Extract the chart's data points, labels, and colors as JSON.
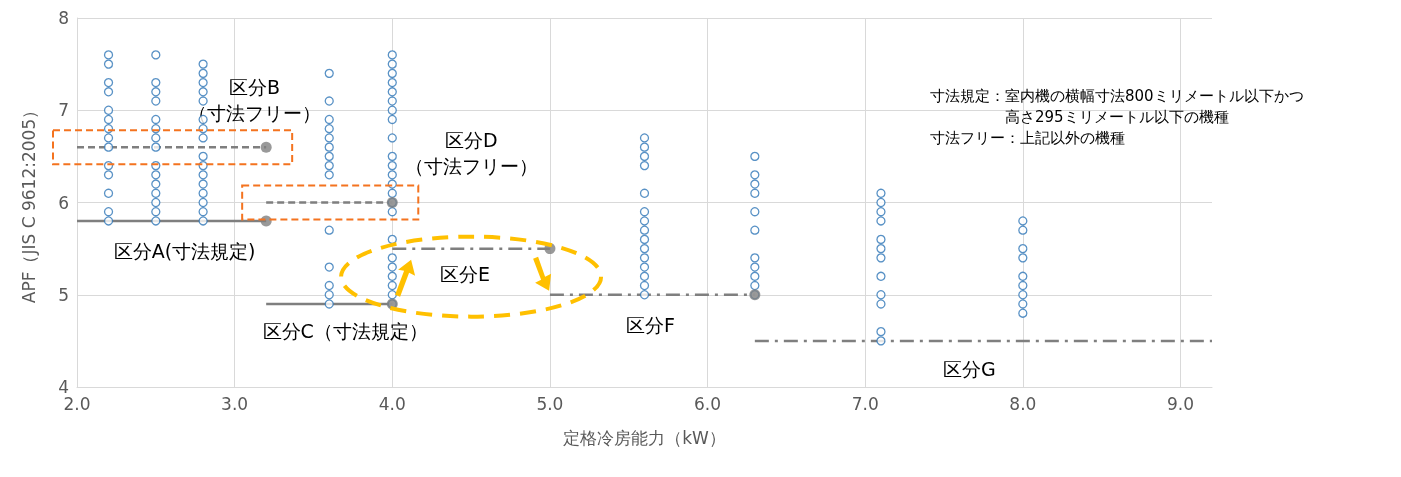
{
  "chart_data": {
    "type": "scatter",
    "xlabel": "定格冷房能力（kW）",
    "ylabel": "APF（JIS C 9612:2005）",
    "xlim": [
      2.0,
      9.2
    ],
    "xticks": [
      {
        "value": 2,
        "label": "2.0"
      },
      {
        "value": 3,
        "label": "3.0"
      },
      {
        "value": 4,
        "label": "4.0"
      },
      {
        "value": 5,
        "label": "5.0"
      },
      {
        "value": 6,
        "label": "6.0"
      },
      {
        "value": 7,
        "label": "7.0"
      },
      {
        "value": 8,
        "label": "8.0"
      },
      {
        "value": 9,
        "label": "9.0"
      }
    ],
    "ylim": [
      4,
      8
    ],
    "yticks": [
      4,
      5,
      6,
      7,
      8
    ],
    "grid": true,
    "series": [
      {
        "marker": "circle",
        "color": "#2e75b6",
        "x": [
          2.2,
          2.2,
          2.2,
          2.2,
          2.2,
          2.2,
          2.2,
          2.2,
          2.2,
          2.2,
          2.2,
          2.2,
          2.2,
          2.2,
          2.5,
          2.5,
          2.5,
          2.5,
          2.5,
          2.5,
          2.5,
          2.5,
          2.5,
          2.5,
          2.5,
          2.5,
          2.5,
          2.5,
          2.5,
          2.8,
          2.8,
          2.8,
          2.8,
          2.8,
          2.8,
          2.8,
          2.8,
          2.8,
          2.8,
          2.8,
          2.8,
          2.8,
          2.8,
          2.8,
          2.8,
          3.6,
          3.6,
          3.6,
          3.6,
          3.6,
          3.6,
          3.6,
          3.6,
          3.6,
          3.6,
          3.6,
          3.6,
          3.6,
          3.6,
          4.0,
          4.0,
          4.0,
          4.0,
          4.0,
          4.0,
          4.0,
          4.0,
          4.0,
          4.0,
          4.0,
          4.0,
          4.0,
          4.0,
          4.0,
          4.0,
          4.0,
          4.0,
          4.0,
          4.0,
          4.0,
          4.0,
          4.0,
          5.6,
          5.6,
          5.6,
          5.6,
          5.6,
          5.6,
          5.6,
          5.6,
          5.6,
          5.6,
          5.6,
          5.6,
          5.6,
          5.6,
          5.6,
          6.3,
          6.3,
          6.3,
          6.3,
          6.3,
          6.3,
          6.3,
          6.3,
          6.3,
          6.3,
          6.3,
          7.1,
          7.1,
          7.1,
          7.1,
          7.1,
          7.1,
          7.1,
          7.1,
          7.1,
          7.1,
          7.1,
          7.1,
          8.0,
          8.0,
          8.0,
          8.0,
          8.0,
          8.0,
          8.0,
          8.0,
          8.0
        ],
        "values": [
          7.6,
          7.5,
          7.3,
          7.2,
          7.0,
          6.9,
          6.8,
          6.7,
          6.6,
          6.4,
          6.3,
          6.1,
          5.9,
          5.8,
          7.6,
          7.3,
          7.2,
          7.1,
          6.9,
          6.8,
          6.7,
          6.6,
          6.4,
          6.3,
          6.2,
          6.1,
          6.0,
          5.9,
          5.8,
          7.5,
          7.4,
          7.3,
          7.2,
          7.1,
          6.9,
          6.8,
          6.7,
          6.5,
          6.4,
          6.3,
          6.2,
          6.1,
          6.0,
          5.9,
          5.8,
          7.4,
          7.1,
          6.9,
          6.8,
          6.7,
          6.6,
          6.5,
          6.4,
          6.3,
          5.7,
          5.3,
          5.1,
          5.0,
          4.9,
          7.6,
          7.5,
          7.4,
          7.3,
          7.2,
          7.1,
          7.0,
          6.9,
          6.7,
          6.5,
          6.4,
          6.3,
          6.2,
          6.1,
          6.0,
          5.9,
          5.6,
          5.4,
          5.3,
          5.2,
          5.1,
          5.0,
          4.9,
          6.7,
          6.6,
          6.5,
          6.4,
          6.1,
          5.9,
          5.8,
          5.7,
          5.6,
          5.5,
          5.4,
          5.3,
          5.2,
          5.1,
          5.0,
          6.5,
          6.3,
          6.2,
          6.1,
          5.9,
          5.7,
          5.4,
          5.3,
          5.2,
          5.1,
          5.0,
          6.1,
          6.0,
          5.9,
          5.8,
          5.6,
          5.5,
          5.4,
          5.2,
          5.0,
          4.9,
          4.6,
          4.5,
          5.8,
          5.7,
          5.5,
          5.4,
          5.2,
          5.1,
          5.0,
          4.9,
          4.8
        ]
      },
      {
        "type": "line",
        "marker": "none",
        "line_style": "solid",
        "color": "#7f7f7f",
        "x": [
          2.0,
          3.2
        ],
        "values": [
          5.8,
          5.8
        ]
      },
      {
        "type": "line",
        "marker": "none",
        "line_style": "dashed",
        "color": "#7f7f7f",
        "x": [
          2.0,
          3.2
        ],
        "values": [
          6.6,
          6.6
        ]
      },
      {
        "type": "line",
        "marker": "none",
        "line_style": "solid",
        "color": "#7f7f7f",
        "x": [
          3.2,
          4.0
        ],
        "values": [
          4.9,
          4.9
        ]
      },
      {
        "type": "line",
        "marker": "none",
        "line_style": "dashed",
        "color": "#7f7f7f",
        "x": [
          3.2,
          4.0
        ],
        "values": [
          6.0,
          6.0
        ]
      },
      {
        "type": "line",
        "marker": "none",
        "line_style": "dashdot",
        "color": "#7f7f7f",
        "x": [
          4.0,
          5.0
        ],
        "values": [
          5.5,
          5.5
        ]
      },
      {
        "type": "line",
        "marker": "none",
        "line_style": "dashdot",
        "color": "#7f7f7f",
        "x": [
          5.0,
          6.3
        ],
        "values": [
          5.0,
          5.0
        ]
      },
      {
        "type": "line",
        "marker": "none",
        "line_style": "dashdot",
        "color": "#7f7f7f",
        "x": [
          6.3,
          9.2
        ],
        "values": [
          4.5,
          4.5
        ]
      },
      {
        "marker": "circle",
        "color": "#7f7f7f",
        "x": [
          3.2,
          3.2,
          4.0,
          4.0,
          5.0,
          6.3
        ],
        "values": [
          5.8,
          6.6,
          4.9,
          6.0,
          5.5,
          5.0
        ]
      }
    ],
    "annotations": [
      "区分A(寸法規定)",
      "区分B\n（寸法フリー）",
      "区分C（寸法規定）",
      "区分D\n（寸法フリー）",
      "区分E",
      "区分F",
      "区分G",
      "寸法規定：室内機の横幅寸法800ミリメートル以下かつ高さ295ミリメートル以下の機種",
      "寸法フリー：上記以外の機種"
    ]
  }
}
